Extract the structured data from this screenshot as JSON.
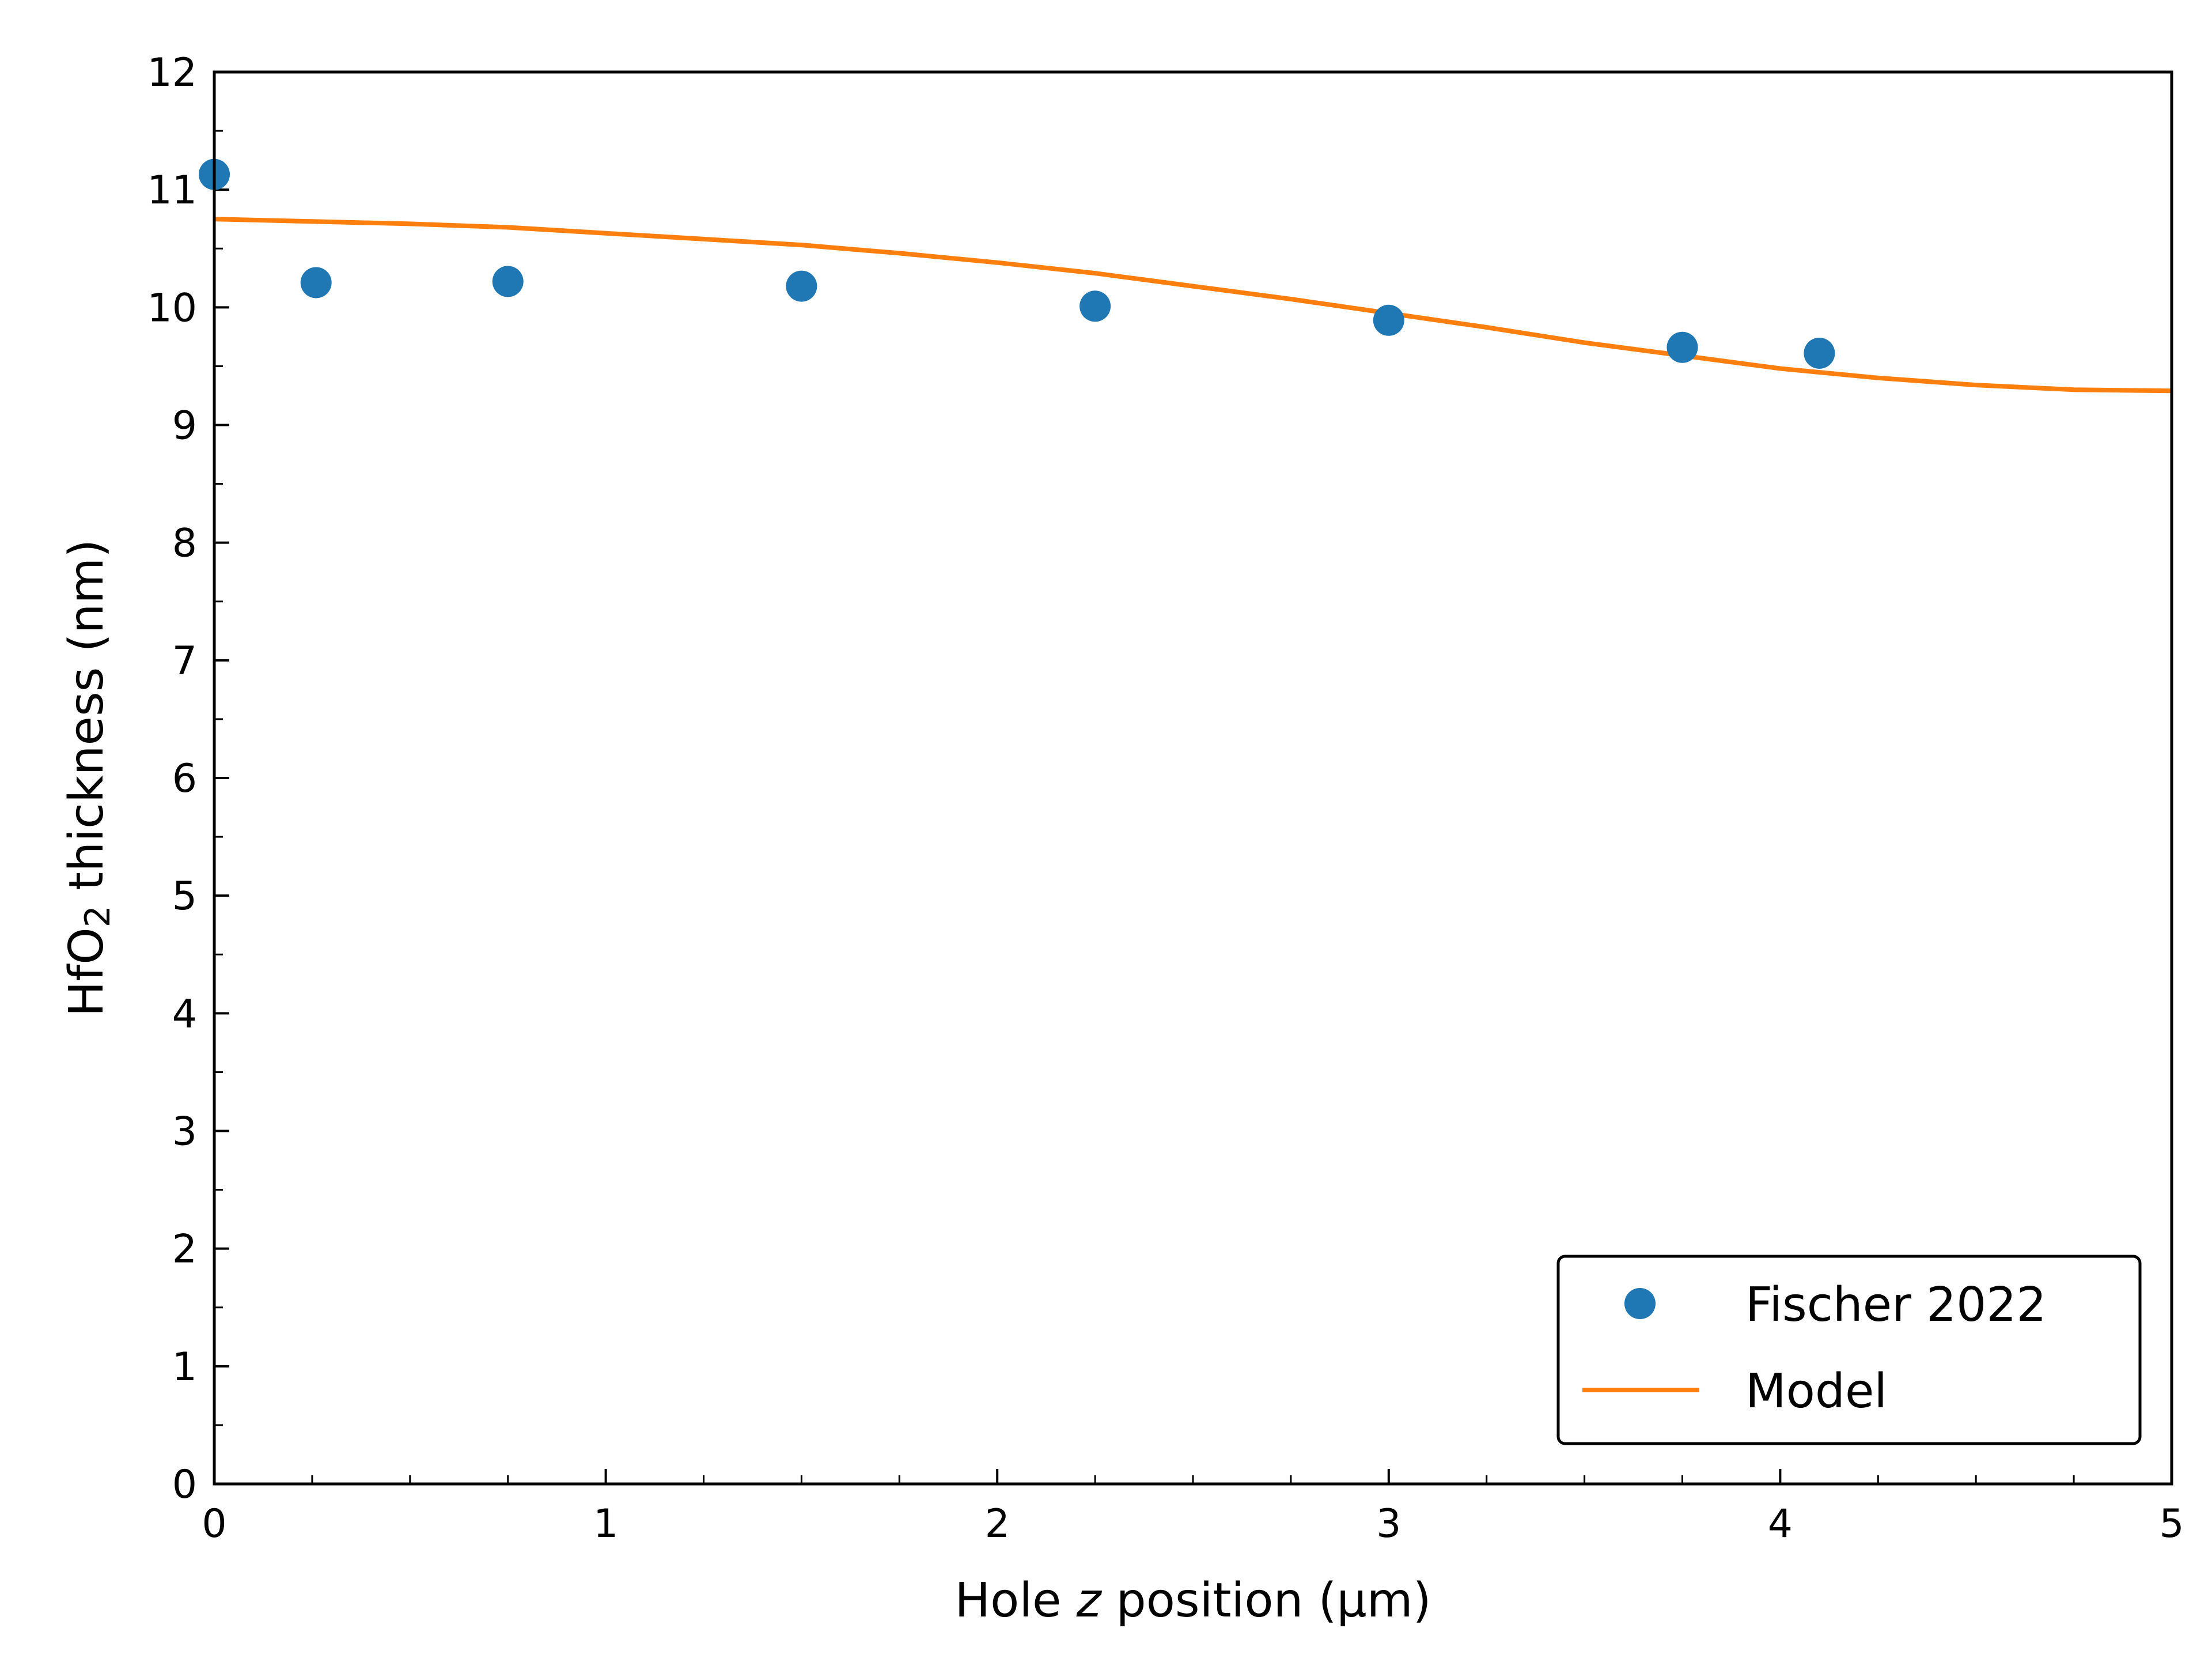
{
  "chart_data": {
    "type": "scatter",
    "title": "",
    "xlabel": {
      "prefix": "Hole ",
      "italic": "z",
      "suffix": " position (µm)"
    },
    "ylabel": {
      "prefix": "HfO",
      "subscript": "2",
      "suffix": " thickness (nm)"
    },
    "xlim": [
      0,
      5
    ],
    "ylim": [
      0,
      12
    ],
    "x_ticks": [
      0,
      1,
      2,
      3,
      4,
      5
    ],
    "y_ticks": [
      0,
      1,
      2,
      3,
      4,
      5,
      6,
      7,
      8,
      9,
      10,
      11,
      12
    ],
    "x_minor_step": 0.25,
    "y_minor_step": 0.5,
    "grid": false,
    "legend_position": "bottom-right",
    "series": [
      {
        "name": "Fischer 2022",
        "kind": "scatter",
        "color": "#1f77b4",
        "points": [
          [
            0.0,
            11.13
          ],
          [
            0.26,
            10.21
          ],
          [
            0.75,
            10.22
          ],
          [
            1.5,
            10.18
          ],
          [
            2.25,
            10.01
          ],
          [
            3.0,
            9.89
          ],
          [
            3.75,
            9.66
          ],
          [
            4.1,
            9.61
          ]
        ]
      },
      {
        "name": "Model",
        "kind": "line",
        "color": "#ff7f0e",
        "points": [
          [
            0.0,
            10.75
          ],
          [
            0.25,
            10.73
          ],
          [
            0.5,
            10.71
          ],
          [
            0.75,
            10.68
          ],
          [
            1.0,
            10.63
          ],
          [
            1.25,
            10.58
          ],
          [
            1.5,
            10.53
          ],
          [
            1.75,
            10.46
          ],
          [
            2.0,
            10.38
          ],
          [
            2.25,
            10.29
          ],
          [
            2.5,
            10.18
          ],
          [
            2.75,
            10.07
          ],
          [
            3.0,
            9.95
          ],
          [
            3.25,
            9.83
          ],
          [
            3.5,
            9.7
          ],
          [
            3.75,
            9.59
          ],
          [
            4.0,
            9.48
          ],
          [
            4.25,
            9.4
          ],
          [
            4.5,
            9.34
          ],
          [
            4.75,
            9.3
          ],
          [
            5.0,
            9.29
          ]
        ]
      }
    ]
  }
}
